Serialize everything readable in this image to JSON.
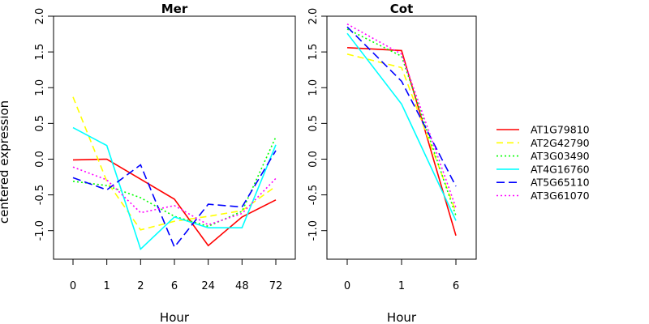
{
  "chart_data": [
    {
      "type": "line",
      "title": "Mer",
      "xlabel": "Hour",
      "ylabel": "centered expression",
      "categories": [
        "0",
        "1",
        "2",
        "6",
        "24",
        "48",
        "72"
      ],
      "yticks": [
        "-1.0",
        "-0.5",
        "0.0",
        "0.5",
        "1.0",
        "1.5",
        "2.0"
      ],
      "ylim": [
        -1.4,
        2.0
      ],
      "series": [
        {
          "name": "AT1G79810",
          "color": "#ff0000",
          "dash": "solid",
          "values": [
            -0.01,
            0.0,
            -0.28,
            -0.56,
            -1.21,
            -0.81,
            -0.57
          ]
        },
        {
          "name": "AT2G42790",
          "color": "#ffff00",
          "dash": "dashed",
          "values": [
            0.87,
            -0.31,
            -0.99,
            -0.87,
            -0.8,
            -0.72,
            -0.38
          ]
        },
        {
          "name": "AT3G03490",
          "color": "#00ff00",
          "dash": "dotted",
          "values": [
            -0.31,
            -0.37,
            -0.54,
            -0.8,
            -0.94,
            -0.73,
            0.31
          ]
        },
        {
          "name": "AT4G16760",
          "color": "#00ffff",
          "dash": "solid",
          "values": [
            0.44,
            0.19,
            -1.26,
            -0.81,
            -0.96,
            -0.96,
            0.2
          ]
        },
        {
          "name": "AT5G65110",
          "color": "#0000ff",
          "dash": "longdash",
          "values": [
            -0.26,
            -0.43,
            -0.08,
            -1.23,
            -0.63,
            -0.67,
            0.12
          ]
        },
        {
          "name": "AT3G61070",
          "color": "#ff00ff",
          "dash": "dotted",
          "values": [
            -0.11,
            -0.29,
            -0.75,
            -0.65,
            -0.92,
            -0.76,
            -0.27
          ]
        }
      ]
    },
    {
      "type": "line",
      "title": "Cot",
      "xlabel": "Hour",
      "ylabel": "",
      "categories": [
        "0",
        "1",
        "6"
      ],
      "yticks": [
        "-1.0",
        "-0.5",
        "0.0",
        "0.5",
        "1.0",
        "1.5",
        "2.0"
      ],
      "ylim": [
        -1.4,
        2.0
      ],
      "series": [
        {
          "name": "AT1G79810",
          "color": "#ff0000",
          "dash": "solid",
          "values": [
            1.56,
            1.52,
            -1.07
          ]
        },
        {
          "name": "AT2G42790",
          "color": "#ffff00",
          "dash": "dashed",
          "values": [
            1.47,
            1.28,
            -0.74
          ]
        },
        {
          "name": "AT3G03490",
          "color": "#00ff00",
          "dash": "dotted",
          "values": [
            1.82,
            1.44,
            -0.79
          ]
        },
        {
          "name": "AT4G16760",
          "color": "#00ffff",
          "dash": "solid",
          "values": [
            1.76,
            0.77,
            -0.86
          ]
        },
        {
          "name": "AT5G65110",
          "color": "#0000ff",
          "dash": "longdash",
          "values": [
            1.85,
            1.09,
            -0.38
          ]
        },
        {
          "name": "AT3G61070",
          "color": "#ff00ff",
          "dash": "dotted",
          "values": [
            1.89,
            1.47,
            -0.68
          ]
        }
      ]
    }
  ],
  "legend": {
    "position": "right",
    "items": [
      {
        "label": "AT1G79810",
        "color": "#ff0000",
        "dash": "solid"
      },
      {
        "label": "AT2G42790",
        "color": "#ffff00",
        "dash": "dashed"
      },
      {
        "label": "AT3G03490",
        "color": "#00ff00",
        "dash": "dotted"
      },
      {
        "label": "AT4G16760",
        "color": "#00ffff",
        "dash": "solid"
      },
      {
        "label": "AT5G65110",
        "color": "#0000ff",
        "dash": "longdash"
      },
      {
        "label": "AT3G61070",
        "color": "#ff00ff",
        "dash": "dotted"
      }
    ]
  }
}
